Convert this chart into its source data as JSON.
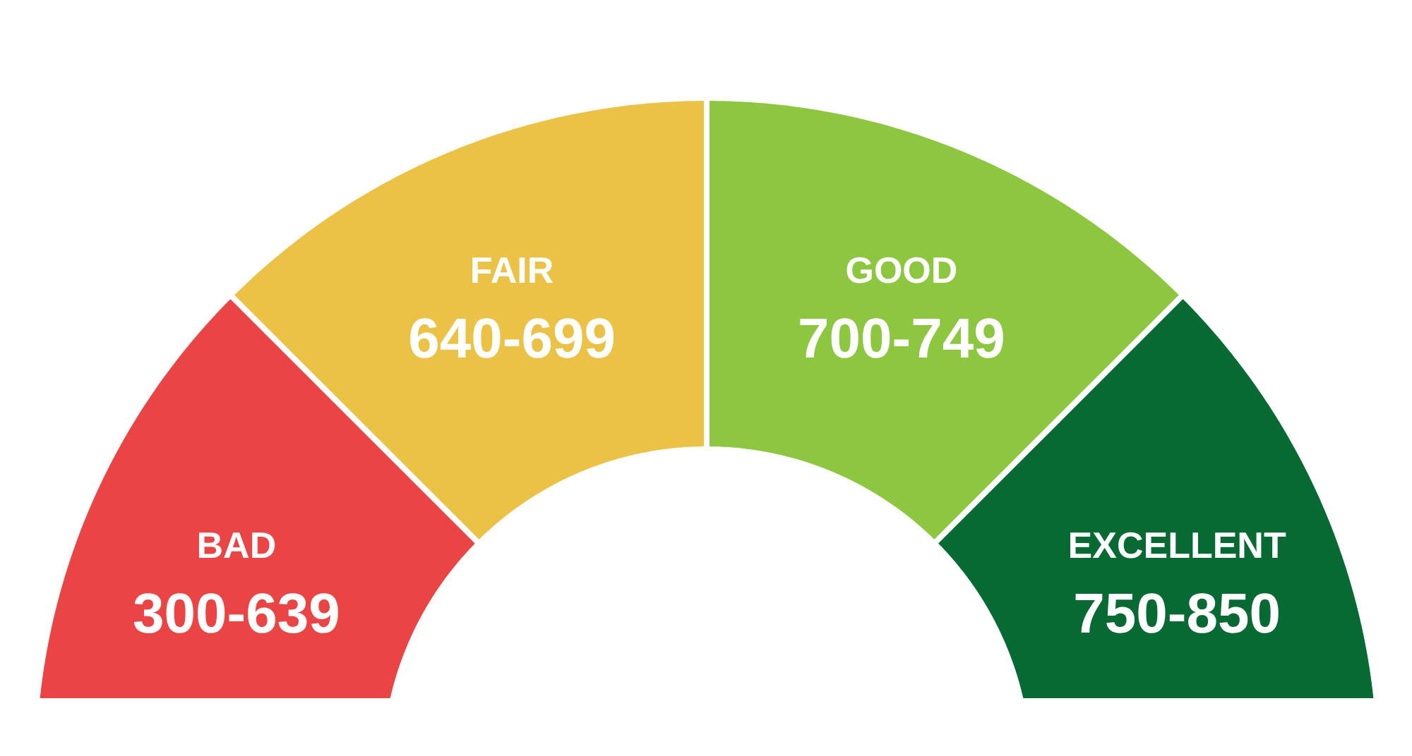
{
  "chart_data": {
    "type": "donut",
    "categories": [
      "BAD",
      "FAIR",
      "GOOD",
      "EXCELLENT"
    ],
    "values": [
      25,
      25,
      25,
      25
    ],
    "colors": [
      "#ea4444",
      "#ebc245",
      "#8dc63f",
      "#066a32"
    ],
    "value_labels": [
      "300-639",
      "640-699",
      "700-749",
      "750-850"
    ]
  }
}
